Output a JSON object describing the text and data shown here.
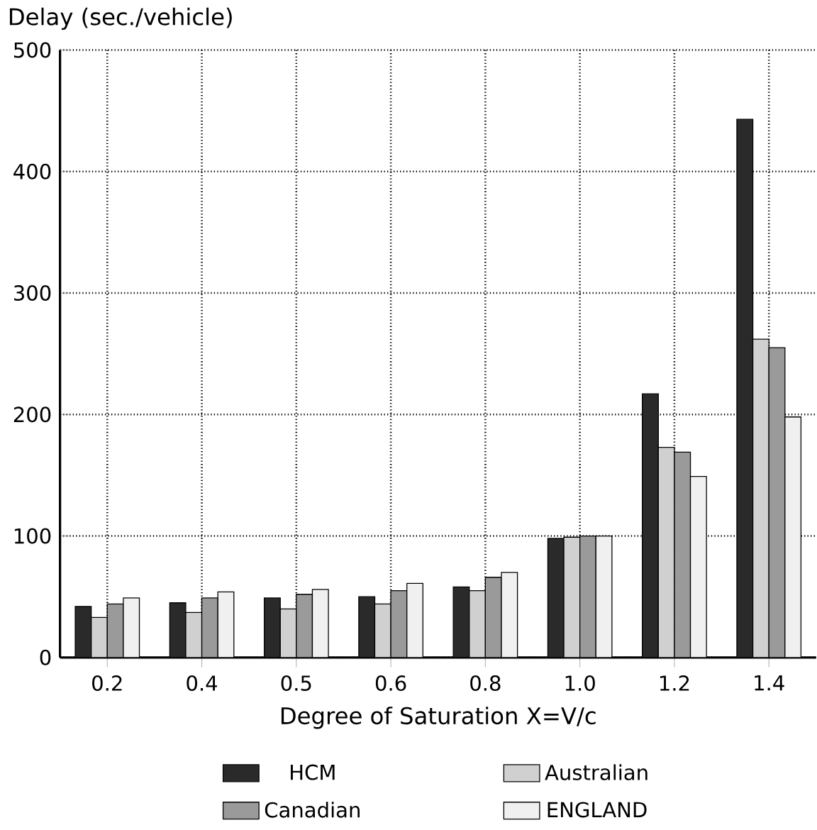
{
  "chart_data": {
    "type": "bar",
    "ylabel": "Delay (sec./vehicle)",
    "xlabel": "Degree of Saturation X=V/c",
    "categories": [
      "0.2",
      "0.4",
      "0.5",
      "0.6",
      "0.8",
      "1.0",
      "1.2",
      "1.4"
    ],
    "series": [
      {
        "name": "HCM",
        "color": "#2a2a2a",
        "values": [
          42,
          45,
          49,
          50,
          58,
          98,
          217,
          443
        ]
      },
      {
        "name": "Australian",
        "color": "#d0d0d0",
        "values": [
          33,
          37,
          40,
          44,
          55,
          99,
          173,
          262
        ]
      },
      {
        "name": "Canadian",
        "color": "#9a9a9a",
        "values": [
          44,
          49,
          52,
          55,
          66,
          100,
          169,
          255
        ]
      },
      {
        "name": "ENGLAND",
        "color": "#f0f0f0",
        "values": [
          49,
          54,
          56,
          61,
          70,
          100,
          149,
          198
        ]
      }
    ],
    "ylim": [
      0,
      500
    ],
    "yticks": [
      0,
      100,
      200,
      300,
      400,
      500
    ],
    "grid": true,
    "legend": "bottom"
  }
}
